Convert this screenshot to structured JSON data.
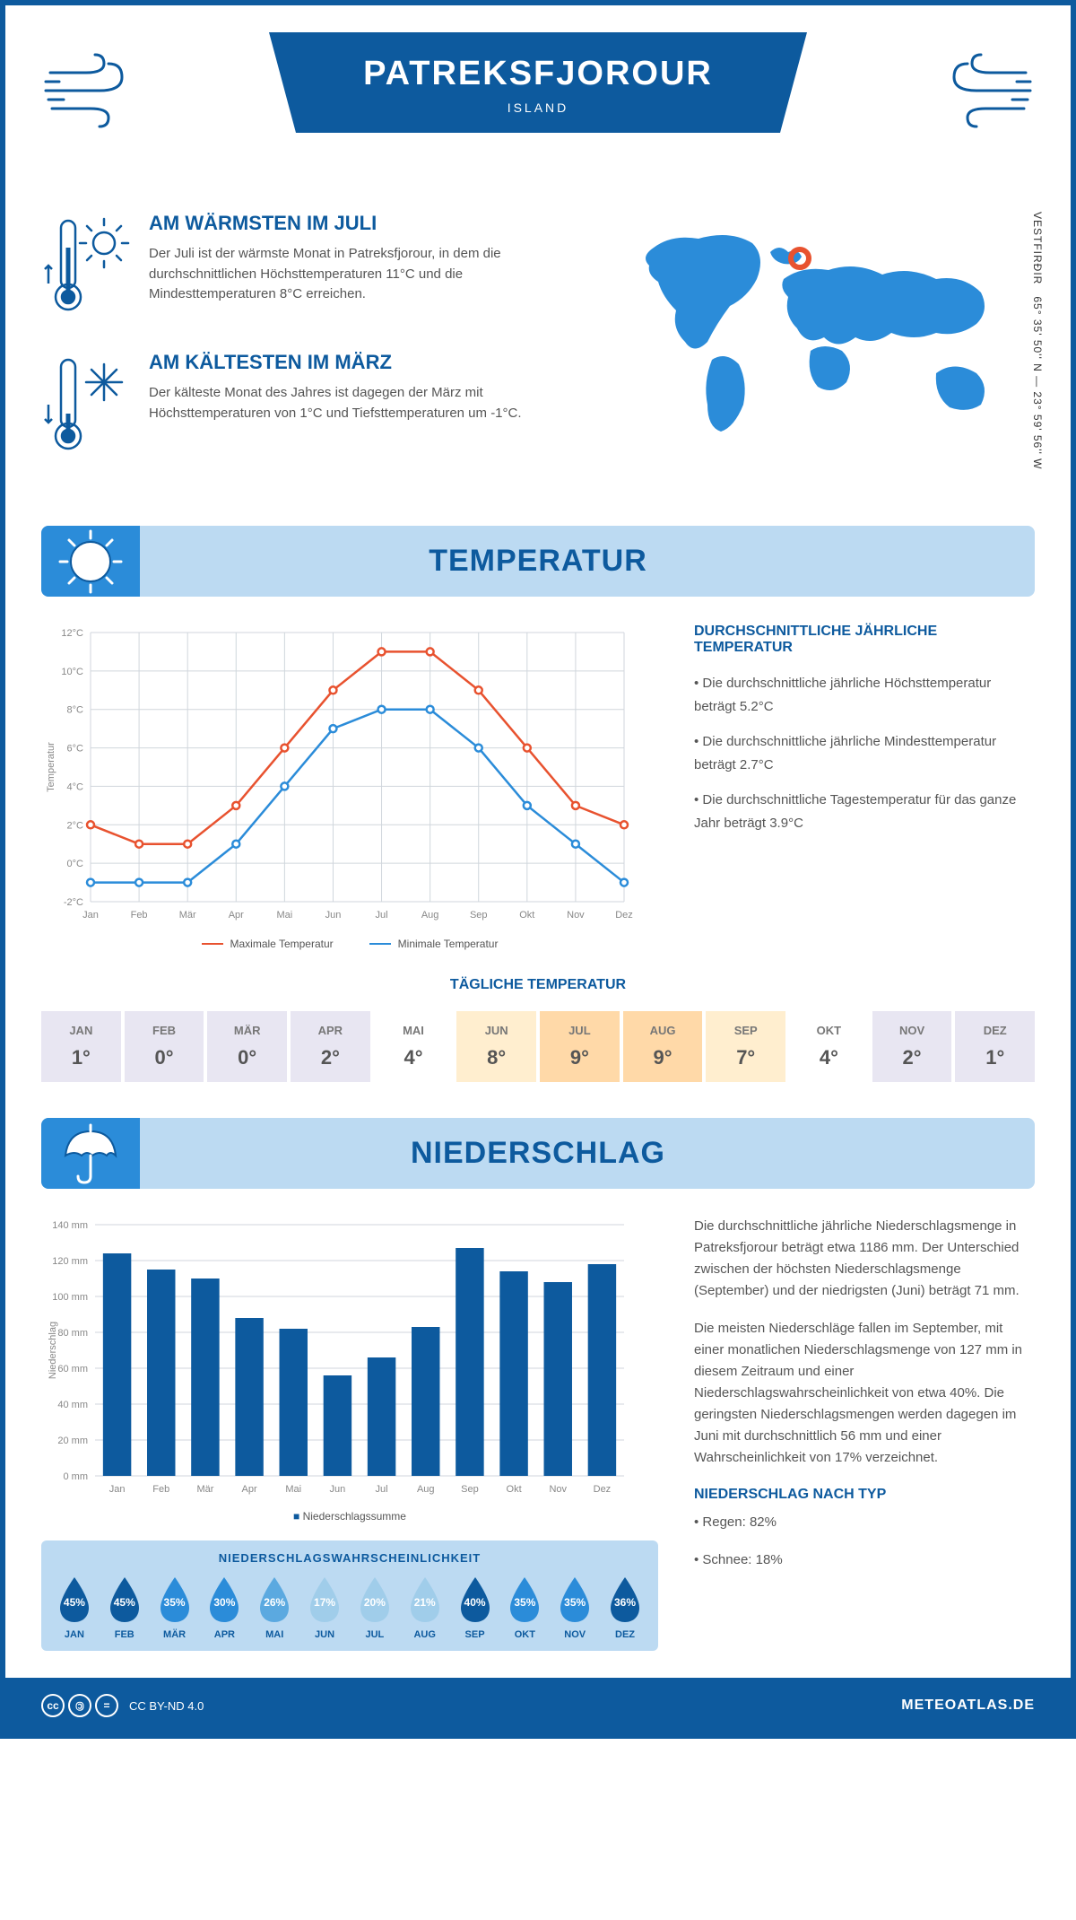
{
  "header": {
    "title": "PATREKSFJOROUR",
    "subtitle": "ISLAND"
  },
  "intro": {
    "warm": {
      "title": "AM WÄRMSTEN IM JULI",
      "text": "Der Juli ist der wärmste Monat in Patreksfjorour, in dem die durchschnittlichen Höchsttemperaturen 11°C und die Mindesttemperaturen 8°C erreichen."
    },
    "cold": {
      "title": "AM KÄLTESTEN IM MÄRZ",
      "text": "Der kälteste Monat des Jahres ist dagegen der März mit Höchsttemperaturen von 1°C und Tiefsttemperaturen um -1°C."
    },
    "coords": "65° 35' 50'' N — 23° 59' 56'' W",
    "region": "VESTFIRÐIR"
  },
  "temperature": {
    "section_title": "TEMPERATUR",
    "chart": {
      "months": [
        "Jan",
        "Feb",
        "Mär",
        "Apr",
        "Mai",
        "Jun",
        "Jul",
        "Aug",
        "Sep",
        "Okt",
        "Nov",
        "Dez"
      ],
      "max": [
        2,
        1,
        1,
        3,
        6,
        9,
        11,
        11,
        9,
        6,
        3,
        2
      ],
      "min": [
        -1,
        -1,
        -1,
        1,
        4,
        7,
        8,
        8,
        6,
        3,
        1,
        -1
      ],
      "ylim": [
        -2,
        12
      ],
      "ytick_step": 2,
      "max_color": "#e8522f",
      "min_color": "#2b8cd9",
      "grid_color": "#d0d6dc",
      "legend_max": "Maximale Temperatur",
      "legend_min": "Minimale Temperatur",
      "y_title": "Temperatur"
    },
    "info": {
      "title": "DURCHSCHNITTLICHE JÄHRLICHE TEMPERATUR",
      "p1": "• Die durchschnittliche jährliche Höchsttemperatur beträgt 5.2°C",
      "p2": "• Die durchschnittliche jährliche Mindesttemperatur beträgt 2.7°C",
      "p3": "• Die durchschnittliche Tagestemperatur für das ganze Jahr beträgt 3.9°C"
    },
    "daily": {
      "title": "TÄGLICHE TEMPERATUR",
      "months": [
        "JAN",
        "FEB",
        "MÄR",
        "APR",
        "MAI",
        "JUN",
        "JUL",
        "AUG",
        "SEP",
        "OKT",
        "NOV",
        "DEZ"
      ],
      "values": [
        "1°",
        "0°",
        "0°",
        "2°",
        "4°",
        "8°",
        "9°",
        "9°",
        "7°",
        "4°",
        "2°",
        "1°"
      ],
      "colors": [
        "#e8e6f2",
        "#e8e6f2",
        "#e8e6f2",
        "#e8e6f2",
        "#ffffff",
        "#ffeecf",
        "#ffd9a8",
        "#ffd9a8",
        "#ffeecf",
        "#ffffff",
        "#e8e6f2",
        "#e8e6f2"
      ]
    }
  },
  "precipitation": {
    "section_title": "NIEDERSCHLAG",
    "chart": {
      "months": [
        "Jan",
        "Feb",
        "Mär",
        "Apr",
        "Mai",
        "Jun",
        "Jul",
        "Aug",
        "Sep",
        "Okt",
        "Nov",
        "Dez"
      ],
      "values": [
        124,
        115,
        110,
        88,
        82,
        56,
        66,
        83,
        127,
        114,
        108,
        118
      ],
      "ylim": [
        0,
        140
      ],
      "ytick_step": 20,
      "bar_color": "#0d5a9e",
      "grid_color": "#d0d6dc",
      "legend": "Niederschlagssumme",
      "y_title": "Niederschlag"
    },
    "info": {
      "p1": "Die durchschnittliche jährliche Niederschlagsmenge in Patreksfjorour beträgt etwa 1186 mm. Der Unterschied zwischen der höchsten Niederschlagsmenge (September) und der niedrigsten (Juni) beträgt 71 mm.",
      "p2": "Die meisten Niederschläge fallen im September, mit einer monatlichen Niederschlagsmenge von 127 mm in diesem Zeitraum und einer Niederschlagswahrscheinlichkeit von etwa 40%. Die geringsten Niederschlagsmengen werden dagegen im Juni mit durchschnittlich 56 mm und einer Wahrscheinlichkeit von 17% verzeichnet.",
      "type_title": "NIEDERSCHLAG NACH TYP",
      "type1": "• Regen: 82%",
      "type2": "• Schnee: 18%"
    },
    "probability": {
      "title": "NIEDERSCHLAGSWAHRSCHEINLICHKEIT",
      "months": [
        "JAN",
        "FEB",
        "MÄR",
        "APR",
        "MAI",
        "JUN",
        "JUL",
        "AUG",
        "SEP",
        "OKT",
        "NOV",
        "DEZ"
      ],
      "values": [
        "45%",
        "45%",
        "35%",
        "30%",
        "26%",
        "17%",
        "20%",
        "21%",
        "40%",
        "35%",
        "35%",
        "36%"
      ],
      "colors": [
        "#0d5a9e",
        "#0d5a9e",
        "#2b8cd9",
        "#2b8cd9",
        "#5ba9e0",
        "#a0cdea",
        "#a0cdea",
        "#a0cdea",
        "#0d5a9e",
        "#2b8cd9",
        "#2b8cd9",
        "#0d5a9e"
      ]
    }
  },
  "footer": {
    "license": "CC BY-ND 4.0",
    "site": "METEOATLAS.DE"
  }
}
